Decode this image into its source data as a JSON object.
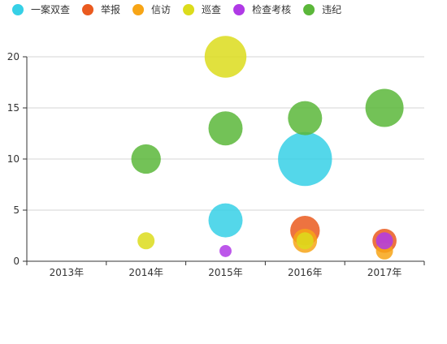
{
  "chart_data": {
    "type": "scatter",
    "subtype": "bubble",
    "categories": [
      "2013年",
      "2014年",
      "2015年",
      "2016年",
      "2017年"
    ],
    "ylim": [
      0,
      20
    ],
    "yticks": [
      0,
      5,
      10,
      15,
      20
    ],
    "grid": true,
    "legend_position": "top-left",
    "series": [
      {
        "name": "一案双查",
        "color": "#36d0e6",
        "points": [
          {
            "x": "2015年",
            "y": 4,
            "size": 4
          },
          {
            "x": "2016年",
            "y": 10,
            "size": 10
          }
        ]
      },
      {
        "name": "举报",
        "color": "#ea5a1f",
        "points": [
          {
            "x": "2016年",
            "y": 3,
            "size": 3
          },
          {
            "x": "2017年",
            "y": 2,
            "size": 2
          }
        ]
      },
      {
        "name": "信访",
        "color": "#f7a516",
        "points": [
          {
            "x": "2016年",
            "y": 2,
            "size": 2
          },
          {
            "x": "2017年",
            "y": 1,
            "size": 1
          }
        ]
      },
      {
        "name": "巡查",
        "color": "#dcdc1c",
        "points": [
          {
            "x": "2014年",
            "y": 2,
            "size": 1
          },
          {
            "x": "2015年",
            "y": 20,
            "size": 6
          },
          {
            "x": "2016年",
            "y": 2,
            "size": 1
          }
        ]
      },
      {
        "name": "检查考核",
        "color": "#b03ae6",
        "points": [
          {
            "x": "2015年",
            "y": 1,
            "size": 0.5
          },
          {
            "x": "2017年",
            "y": 2,
            "size": 1
          }
        ]
      },
      {
        "name": "违纪",
        "color": "#5bb73a",
        "points": [
          {
            "x": "2014年",
            "y": 10,
            "size": 3
          },
          {
            "x": "2015年",
            "y": 13,
            "size": 4
          },
          {
            "x": "2016年",
            "y": 14,
            "size": 4
          },
          {
            "x": "2017年",
            "y": 15,
            "size": 5
          }
        ]
      }
    ]
  }
}
